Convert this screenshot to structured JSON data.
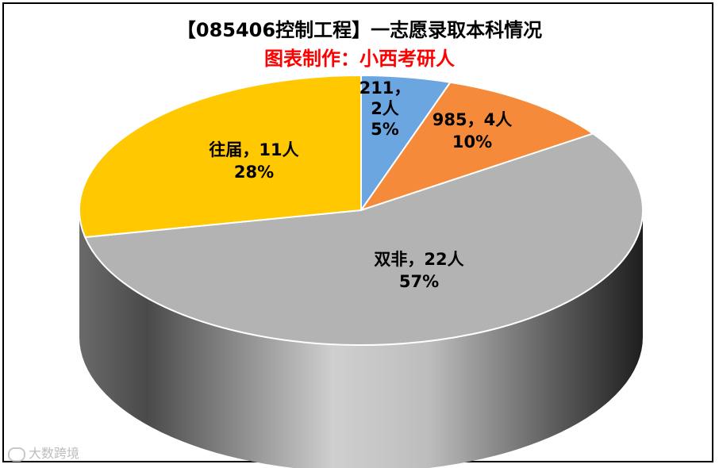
{
  "chart_data": {
    "type": "pie",
    "title": "【085406控制工程】一志愿录取本科情况",
    "subtitle": "图表制作：小西考研人",
    "slices": [
      {
        "label_lines": [
          "211，",
          "2人",
          "5%"
        ],
        "value": 2,
        "percent": 5,
        "color": "#6CA6E0"
      },
      {
        "label_lines": [
          "985，4人",
          "10%"
        ],
        "value": 4,
        "percent": 10,
        "color": "#F58A3A"
      },
      {
        "label_lines": [
          "双非，22人",
          "57%"
        ],
        "value": 22,
        "percent": 57,
        "color": "#B3B3B3"
      },
      {
        "label_lines": [
          "往届，11人",
          "28%"
        ],
        "value": 11,
        "percent": 28,
        "color": "#FFC800"
      }
    ],
    "three_d": true
  },
  "watermark": {
    "text": "大数跨境",
    "icon": "logo-icon"
  }
}
